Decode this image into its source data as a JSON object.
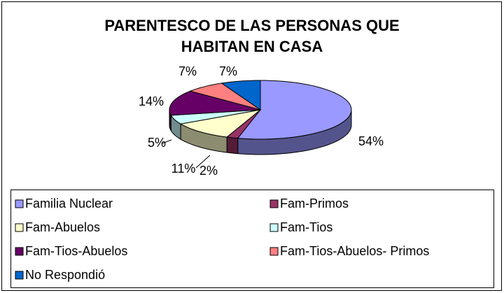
{
  "chart_data": {
    "type": "pie3d",
    "title": "PARENTESCO DE LAS PERSONAS QUE HABITAN EN CASA",
    "categories": [
      "Familia Nuclear",
      "Fam-Primos",
      "Fam-Abuelos",
      "Fam-Tios",
      "Fam-Tios-Abuelos",
      "Fam-Tios-Abuelos- Primos",
      "No Respondió"
    ],
    "values": [
      54,
      2,
      11,
      5,
      14,
      7,
      7
    ],
    "value_labels": [
      "54%",
      "2%",
      "11%",
      "5%",
      "14%",
      "7%",
      "7%"
    ],
    "colors": [
      "#9999ff",
      "#993366",
      "#ffffcc",
      "#ccffff",
      "#660066",
      "#ff8080",
      "#0066cc"
    ],
    "legend": "bottom"
  }
}
